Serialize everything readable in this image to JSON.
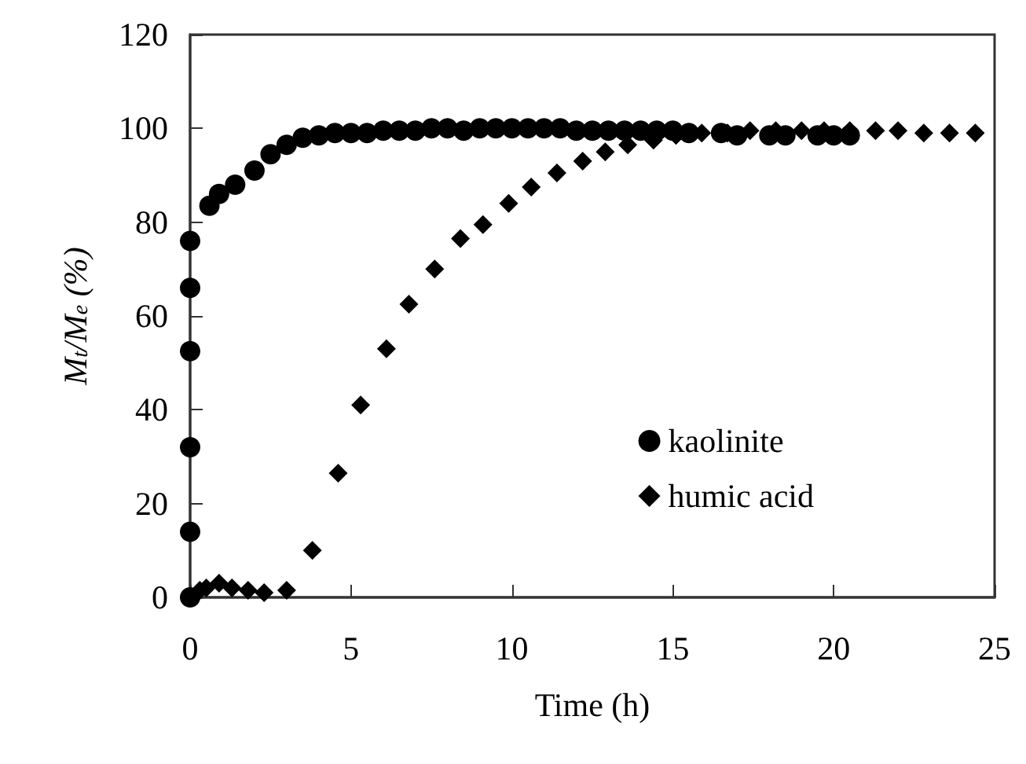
{
  "chart_data": {
    "type": "scatter",
    "xlabel": "Time (h)",
    "ylabel": "M$_{t}$/M$_{e}$ (%)",
    "xlim": [
      0,
      25
    ],
    "xticks": [
      0,
      5,
      10,
      15,
      20,
      25
    ],
    "ylim": [
      0,
      120
    ],
    "yticks": [
      0,
      20,
      40,
      60,
      80,
      100,
      120
    ],
    "grid": false,
    "legend": "right",
    "series": [
      {
        "name": "kaolinite",
        "color": "#000000",
        "marker": "circle",
        "x": [
          0,
          0,
          0,
          0,
          0,
          0,
          0.6,
          0.9,
          1.4,
          2.0,
          2.5,
          3.0,
          3.5,
          4.0,
          4.5,
          5.0,
          5.5,
          6.0,
          6.5,
          7.0,
          7.5,
          8.0,
          8.5,
          9.0,
          9.5,
          10.0,
          10.5,
          11.0,
          11.5,
          12.0,
          12.5,
          13.0,
          13.5,
          14.0,
          14.5,
          15.0,
          15.5,
          16.0,
          16.5,
          17.0,
          17.5,
          18.0,
          18.5,
          19.0,
          19.5,
          20.0,
          20.5
        ],
        "values": [
          0,
          14,
          32,
          52.5,
          66,
          76,
          83.5,
          86,
          88,
          91,
          94.5,
          96.5,
          98,
          98.5,
          99,
          99,
          99,
          99.5,
          99.5,
          99.5,
          100,
          100,
          99.5,
          100,
          100,
          100,
          100,
          100,
          100,
          99.5,
          99.5,
          99.5,
          99.5,
          99.5,
          99.5,
          99.5,
          99,
          null,
          99,
          98.5,
          null,
          98.5,
          98.5,
          null,
          98.5,
          98.5,
          98.5
        ]
      },
      {
        "name": "humic acid",
        "color": "#000000",
        "marker": "diamond",
        "x": [
          0.3,
          0.5,
          0.9,
          1.3,
          1.8,
          2.3,
          3.0,
          3.8,
          4.6,
          5.3,
          6.1,
          6.8,
          7.6,
          8.4,
          9.1,
          9.9,
          10.6,
          11.4,
          12.2,
          12.9,
          13.6,
          14.4,
          15.1,
          15.9,
          16.7,
          17.4,
          18.2,
          19.0,
          19.7,
          20.5,
          21.3,
          22.0,
          22.8,
          23.6,
          24.4
        ],
        "values": [
          1.5,
          2,
          3,
          2,
          1.5,
          1,
          1.5,
          10,
          26.5,
          41,
          53,
          62.5,
          70,
          76.5,
          79.5,
          84,
          87.5,
          90.5,
          93,
          95,
          96.5,
          97.5,
          98.5,
          99,
          99,
          99.5,
          99.5,
          99.5,
          99.5,
          99.5,
          99.5,
          99.5,
          99,
          99,
          99
        ]
      }
    ]
  }
}
